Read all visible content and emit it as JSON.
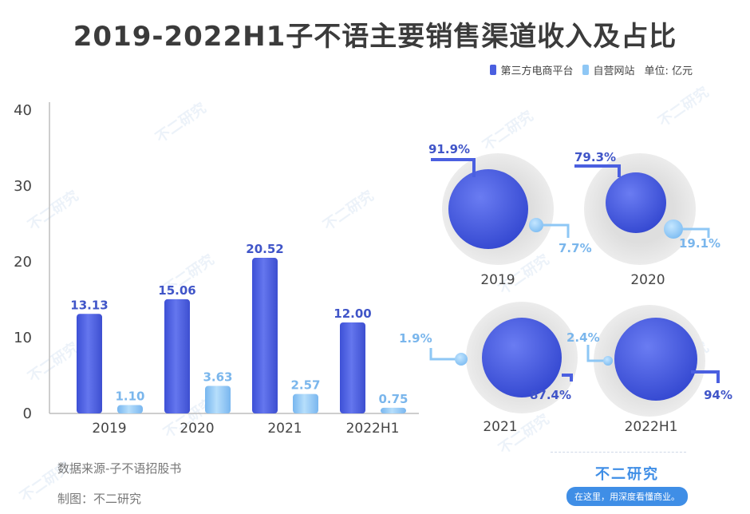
{
  "title": "2019-2022H1子不语主要销售渠道收入及占比",
  "legend": {
    "series1": "第三方电商平台",
    "series2": "自营网站",
    "unit": "单位: 亿元"
  },
  "colors": {
    "series1": "#4a5fe0",
    "series2": "#8ec7f5",
    "label1": "#4055c8",
    "label2": "#7ab6ec",
    "halo": "#d9d9d9"
  },
  "chart_data": [
    {
      "type": "bar",
      "categories": [
        "2019",
        "2020",
        "2021",
        "2022H1"
      ],
      "series": [
        {
          "name": "第三方电商平台",
          "values": [
            13.13,
            15.06,
            20.52,
            12.0
          ],
          "labels": [
            "13.13",
            "15.06",
            "20.52",
            "12.00"
          ]
        },
        {
          "name": "自营网站",
          "values": [
            1.1,
            3.63,
            2.57,
            0.75
          ],
          "labels": [
            "1.10",
            "3.63",
            "2.57",
            "0.75"
          ]
        }
      ],
      "ylim": [
        0,
        40
      ],
      "yticks": [
        "0",
        "10",
        "20",
        "30",
        "40"
      ]
    },
    {
      "type": "bubble-share",
      "panels": [
        {
          "year": "2019",
          "series1": 91.9,
          "series2": 7.7,
          "label1": "91.9%",
          "label2": "7.7%"
        },
        {
          "year": "2020",
          "series1": 79.3,
          "series2": 19.1,
          "label1": "79.3%",
          "label2": "19.1%"
        },
        {
          "year": "2021",
          "series1": 87.4,
          "series2": 1.9,
          "label1": "87.4%",
          "label2": "1.9%"
        },
        {
          "year": "2022H1",
          "series1": 94,
          "series2": 2.4,
          "label1": "94%",
          "label2": "2.4%"
        }
      ]
    }
  ],
  "footer": {
    "source": "数据来源-子不语招股书",
    "maker": "制图：不二研究",
    "brand_name": "不二研究",
    "brand_tag": "在这里，用深度看懂商业。"
  },
  "watermark": "不二研究"
}
